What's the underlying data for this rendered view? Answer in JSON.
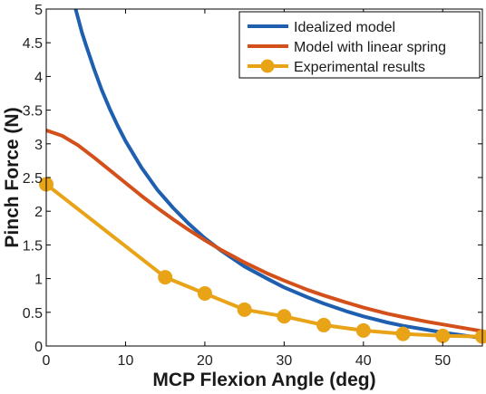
{
  "chart_data": {
    "type": "line",
    "xlabel": "MCP Flexion Angle (deg)",
    "ylabel": "Pinch Force (N)",
    "xlim": [
      0,
      55
    ],
    "ylim": [
      0,
      5
    ],
    "xticks": [
      0,
      10,
      20,
      30,
      40,
      50
    ],
    "yticks": [
      0,
      0.5,
      1,
      1.5,
      2,
      2.5,
      3,
      3.5,
      4,
      4.5,
      5
    ],
    "ytick_labels": [
      "0",
      "0.5",
      "1",
      "1.5",
      "2",
      "2.5",
      "3",
      "3.5",
      "4",
      "4.5",
      "5"
    ],
    "xtick_labels": [
      "0",
      "10",
      "20",
      "30",
      "40",
      "50"
    ],
    "grid": false,
    "legend_position": "top-right",
    "series": [
      {
        "name": "Idealized model",
        "color": "#1f5fb0",
        "marker": "none",
        "x": [
          3.7,
          4.5,
          5,
          6,
          7,
          8,
          9,
          10,
          12,
          14,
          16,
          18,
          20,
          22,
          25,
          28,
          30,
          33,
          35,
          38,
          40,
          43,
          45,
          48,
          50,
          53,
          55
        ],
        "y": [
          5.0,
          4.65,
          4.47,
          4.12,
          3.8,
          3.52,
          3.27,
          3.04,
          2.65,
          2.32,
          2.05,
          1.81,
          1.6,
          1.42,
          1.18,
          0.99,
          0.87,
          0.72,
          0.63,
          0.51,
          0.44,
          0.35,
          0.3,
          0.24,
          0.2,
          0.15,
          0.12
        ]
      },
      {
        "name": "Model with linear spring",
        "color": "#d4501a",
        "marker": "none",
        "x": [
          0,
          2,
          4,
          6,
          8,
          10,
          12,
          14,
          16,
          18,
          20,
          22,
          25,
          28,
          30,
          33,
          35,
          38,
          40,
          43,
          45,
          48,
          50,
          53,
          55
        ],
        "y": [
          3.2,
          3.12,
          2.98,
          2.8,
          2.61,
          2.42,
          2.23,
          2.05,
          1.88,
          1.72,
          1.57,
          1.43,
          1.24,
          1.07,
          0.97,
          0.83,
          0.75,
          0.64,
          0.57,
          0.48,
          0.43,
          0.36,
          0.32,
          0.26,
          0.22
        ]
      },
      {
        "name": "Experimental results",
        "color": "#e8a317",
        "marker": "circle",
        "x": [
          0,
          15,
          20,
          25,
          30,
          35,
          40,
          45,
          50,
          55
        ],
        "y": [
          2.4,
          1.02,
          0.78,
          0.54,
          0.44,
          0.31,
          0.23,
          0.18,
          0.15,
          0.14
        ]
      }
    ]
  }
}
